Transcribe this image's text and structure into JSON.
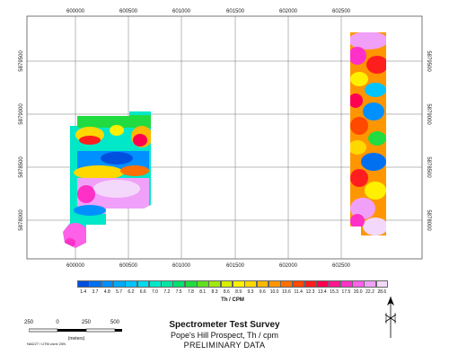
{
  "map": {
    "x_ticks_top": [
      "600000",
      "600500",
      "601000",
      "601500",
      "602000",
      "602500"
    ],
    "x_ticks_bottom": [
      "600000",
      "600500",
      "601000",
      "601500",
      "602000",
      "602500"
    ],
    "y_ticks_left": [
      "5879500",
      "5879000",
      "5878500",
      "5878000"
    ],
    "y_ticks_right": [
      "5879500",
      "5879000",
      "5878500",
      "5878000"
    ]
  },
  "legend": {
    "labels": [
      "1.4",
      "3.7",
      "4.8",
      "5.7",
      "6.2",
      "6.6",
      "7.0",
      "7.2",
      "7.5",
      "7.8",
      "8.1",
      "8.3",
      "8.6",
      "8.9",
      "9.3",
      "9.6",
      "10.0",
      "10.6",
      "11.4",
      "12.3",
      "13.4",
      "15.3",
      "17.5",
      "20.0",
      "22.2",
      "28.6"
    ],
    "colors": [
      "#0050e0",
      "#0070f0",
      "#0090ff",
      "#00aaff",
      "#00c4ff",
      "#00dcf0",
      "#00e8c8",
      "#00e6a0",
      "#00e070",
      "#20dc40",
      "#60e020",
      "#a0e810",
      "#d8f000",
      "#fff000",
      "#ffd800",
      "#ffb800",
      "#ff9600",
      "#ff7000",
      "#ff4800",
      "#ff1e1e",
      "#ff0050",
      "#ff1890",
      "#ff30c8",
      "#ff60e8",
      "#f0a0f8",
      "#f4d8fc"
    ],
    "unit": "Th / CPM"
  },
  "scale_bar": {
    "labels": [
      "250",
      "0",
      "250",
      "500"
    ],
    "unit": "(meters)",
    "projection": "NAD27 / UTM zone 20N"
  },
  "title_block": {
    "title": "Spectrometer Test Survey",
    "subtitle": "Pope's Hill Prospect, Th / cpm",
    "status": "PRELIMINARY DATA"
  }
}
